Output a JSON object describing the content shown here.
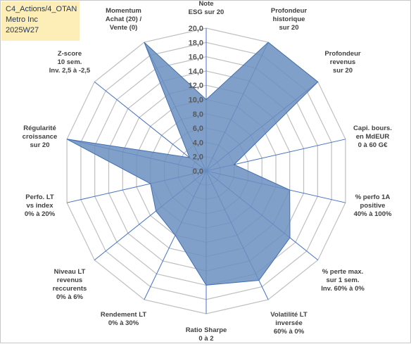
{
  "info": {
    "line1": "C4_Actions/4_OTAN",
    "line2": "Metro Inc",
    "line3": "2025W27"
  },
  "colors": {
    "fill": "#6b8fc0",
    "stroke": "#3f6eb0",
    "grid": "#bfbfbf",
    "spoke": "#4472c4",
    "info_bg": "#fdeeb8"
  },
  "chart_data": {
    "type": "radar",
    "rmax": 20,
    "tick_step": 2,
    "ticks": [
      "0,0",
      "2,0",
      "4,0",
      "6,0",
      "8,0",
      "10,0",
      "12,0",
      "14,0",
      "16,0",
      "18,0",
      "20,0"
    ],
    "axes": [
      {
        "label": [
          "Note",
          "ESG sur 20"
        ],
        "value": 10
      },
      {
        "label": [
          "Profondeur",
          "historique",
          "sur 20"
        ],
        "value": 20
      },
      {
        "label": [
          "Profondeur",
          "revenus",
          "sur 20"
        ],
        "value": 20
      },
      {
        "label": [
          "Capi. bours.",
          "en MdEUR",
          "0 à 60 G€"
        ],
        "value": 4
      },
      {
        "label": [
          "% perfo 1A",
          "positive",
          "40% à 100%"
        ],
        "value": 12
      },
      {
        "label": [
          "% perte max.",
          "sur 1 sem.",
          "Inv. 60% à 0%"
        ],
        "value": 15
      },
      {
        "label": [
          "Volatilité LT",
          "inversée",
          "60% à 0%"
        ],
        "value": 17
      },
      {
        "label": [
          "Ratio Sharpe",
          "0 à 2"
        ],
        "value": 16
      },
      {
        "label": [
          "Rendement LT",
          "0% à 30%"
        ],
        "value": 10
      },
      {
        "label": [
          "Niveau LT",
          "revenus",
          "reccurents",
          "0% à 6%"
        ],
        "value": 9
      },
      {
        "label": [
          "Perfo. LT",
          "vs index",
          "0% à 20%"
        ],
        "value": 8
      },
      {
        "label": [
          "Régularité",
          "croissance",
          "sur 20"
        ],
        "value": 20
      },
      {
        "label": [
          "Z-score",
          "10 sem.",
          "Inv. 2,5 à -2,5"
        ],
        "value": 3
      },
      {
        "label": [
          "Momentum",
          "Achat (20) /",
          "Vente (0)"
        ],
        "value": 20
      }
    ]
  }
}
